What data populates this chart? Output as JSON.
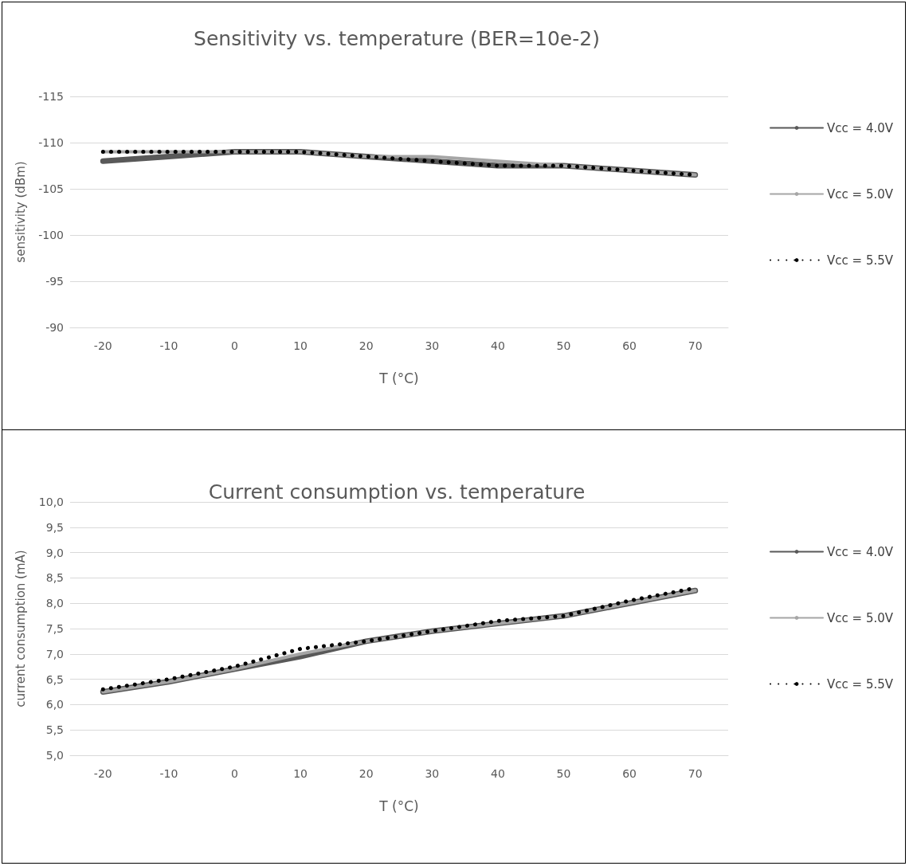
{
  "chart_data": [
    {
      "type": "line",
      "title": "Sensitivity vs. temperature (BER=10e-2)",
      "xlabel": "T (°C)",
      "ylabel": "sensitivity (dBm)",
      "categories": [
        "-20",
        "-10",
        "0",
        "10",
        "20",
        "30",
        "40",
        "50",
        "60",
        "70"
      ],
      "series": [
        {
          "name": "Vcc = 4.0V",
          "color": "#595959",
          "values": [
            -108,
            -108.5,
            -109,
            -109,
            -108.5,
            -108,
            -107.5,
            -107.5,
            -107,
            -106.5
          ]
        },
        {
          "name": "Vcc = 5.0V",
          "color": "#a6a6a6",
          "values": [
            -109,
            -109,
            -109,
            -109,
            -108.5,
            -108.5,
            -108,
            -107.5,
            -107,
            -106.5
          ]
        },
        {
          "name": "Vcc = 5.5V",
          "color": "#000000",
          "line_style": "dotted",
          "values": [
            -109,
            -109,
            -109,
            -109,
            -108.5,
            -108,
            -107.5,
            -107.5,
            -107,
            -106.5
          ]
        }
      ],
      "ylim": [
        -90,
        -115
      ],
      "yticks": [
        -115,
        -110,
        -105,
        -100,
        -95,
        -90
      ],
      "grid": "y",
      "legend": "right",
      "marker": "none"
    },
    {
      "type": "line",
      "title": "Current consumption vs. temperature",
      "xlabel": "T (°C)",
      "ylabel": "current consumption (mA)",
      "categories": [
        "-20",
        "-10",
        "0",
        "10",
        "20",
        "30",
        "40",
        "50",
        "60",
        "70"
      ],
      "series": [
        {
          "name": "Vcc = 4.0V",
          "color": "#595959",
          "values": [
            6.25,
            6.45,
            6.7,
            6.95,
            7.25,
            7.45,
            7.6,
            7.75,
            8.0,
            8.25
          ]
        },
        {
          "name": "Vcc = 5.0V",
          "color": "#a6a6a6",
          "values": [
            6.25,
            6.45,
            6.7,
            7.0,
            7.25,
            7.45,
            7.6,
            7.75,
            8.0,
            8.25
          ]
        },
        {
          "name": "Vcc = 5.5V",
          "color": "#000000",
          "line_style": "dotted",
          "values": [
            6.3,
            6.5,
            6.75,
            7.1,
            7.25,
            7.45,
            7.65,
            7.75,
            8.05,
            8.3
          ]
        }
      ],
      "ylim": [
        5,
        10
      ],
      "yticks": [
        {
          "value": 5,
          "label": "5,0"
        },
        {
          "value": 5.5,
          "label": "5,5"
        },
        {
          "value": 6,
          "label": "6,0"
        },
        {
          "value": 6.5,
          "label": "6,5"
        },
        {
          "value": 7,
          "label": "7,0"
        },
        {
          "value": 7.5,
          "label": "7,5"
        },
        {
          "value": 8,
          "label": "8,0"
        },
        {
          "value": 8.5,
          "label": "8,5"
        },
        {
          "value": 9,
          "label": "9,0"
        },
        {
          "value": 9.5,
          "label": "9,5"
        },
        {
          "value": 10,
          "label": "10,0"
        }
      ],
      "grid": "y",
      "legend": "right",
      "marker": "none"
    }
  ]
}
